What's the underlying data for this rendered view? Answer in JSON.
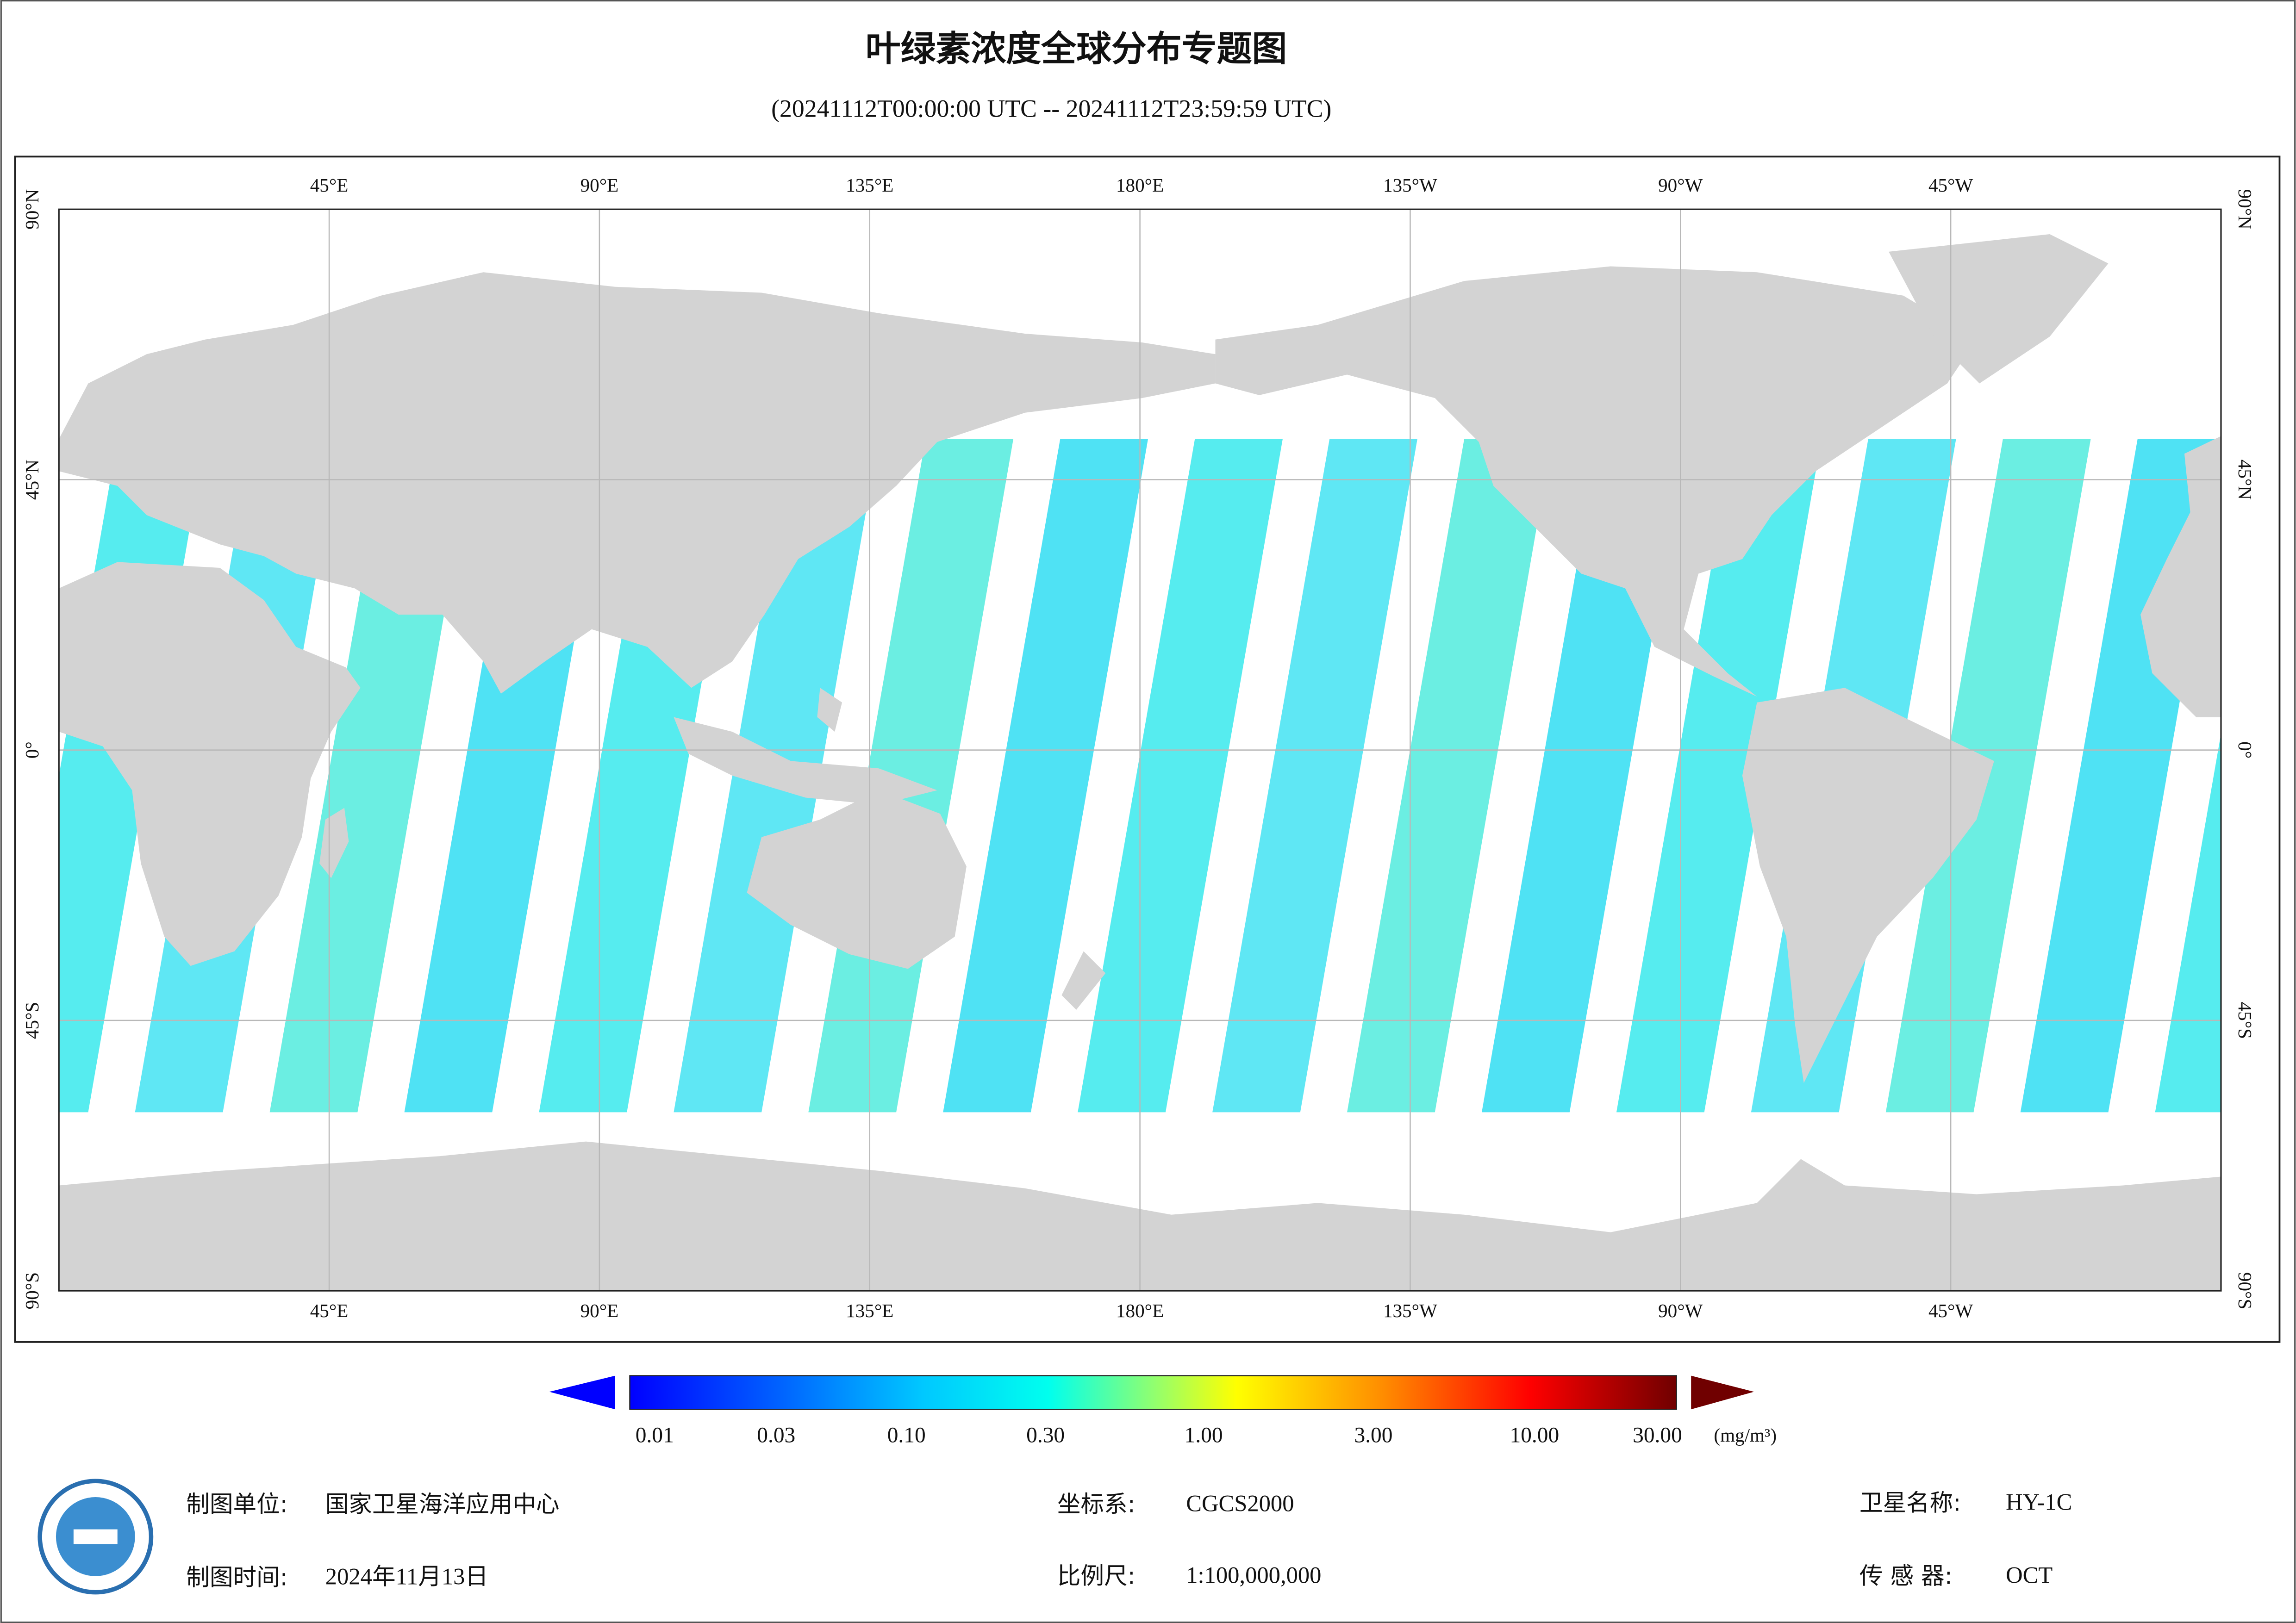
{
  "header": {
    "title": "叶绿素浓度全球分布专题图",
    "subtitle": "(20241112T00:00:00 UTC -- 20241112T23:59:59 UTC)"
  },
  "map": {
    "longitude_labels": [
      "45°E",
      "90°E",
      "135°E",
      "180°E",
      "135°W",
      "90°W",
      "45°W"
    ],
    "latitude_labels": [
      "90°N",
      "45°N",
      "0°",
      "45°S",
      "90°S"
    ]
  },
  "colorbar": {
    "ticks": [
      "0.01",
      "0.03",
      "0.10",
      "0.30",
      "1.00",
      "3.00",
      "10.00",
      "30.00"
    ],
    "unit": "(mg/m³)"
  },
  "footer": {
    "producer_label": "制图单位:",
    "producer": "国家卫星海洋应用中心",
    "date_label": "制图时间:",
    "date": "2024年11月13日",
    "crs_label": "坐标系:",
    "crs": "CGCS2000",
    "scale_label": "比例尺:",
    "scale": "1:100,000,000",
    "satellite_label": "卫星名称:",
    "satellite": "HY-1C",
    "sensor_label": "传 感 器:",
    "sensor": "OCT"
  }
}
